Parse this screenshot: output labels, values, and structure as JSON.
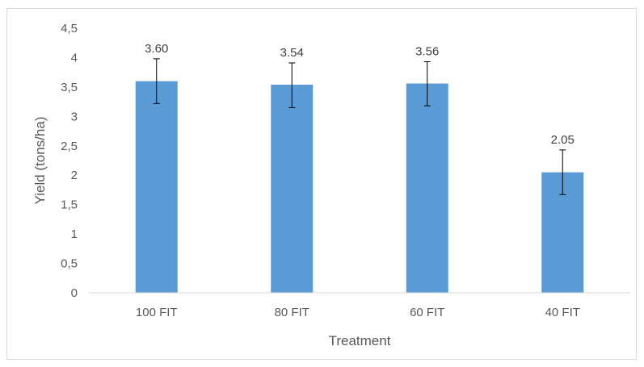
{
  "chart_data": {
    "type": "bar",
    "categories": [
      "100 FIT",
      "80 FIT",
      "60 FIT",
      "40 FIT"
    ],
    "values": [
      3.6,
      3.54,
      3.56,
      2.05
    ],
    "data_labels": [
      "3.60",
      "3.54",
      "3.56",
      "2.05"
    ],
    "error_low": [
      3.22,
      3.15,
      3.18,
      1.67
    ],
    "error_high": [
      3.98,
      3.91,
      3.93,
      2.43
    ],
    "xlabel": "Treatment",
    "ylabel": "Yield (tons/ha)",
    "ylim": [
      0,
      4.5
    ],
    "y_ticks": [
      0,
      0.5,
      1,
      1.5,
      2,
      2.5,
      3,
      3.5,
      4,
      4.5
    ],
    "y_tick_labels": [
      "0",
      "0,5",
      "1",
      "1,5",
      "2",
      "2,5",
      "3",
      "3,5",
      "4",
      "4,5"
    ],
    "grid": false,
    "legend": "none",
    "bar_color": "#5b9bd5",
    "axis_color": "#d9d9d9"
  }
}
